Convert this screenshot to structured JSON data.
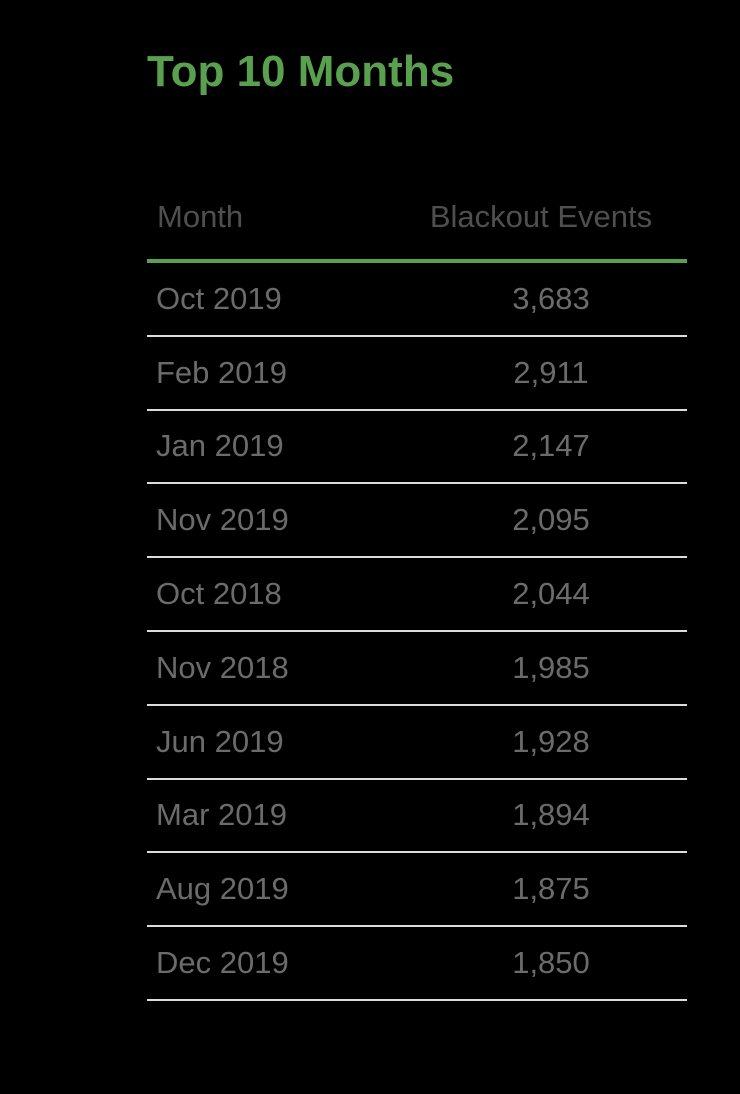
{
  "title": "Top 10 Months",
  "colors": {
    "background": "#000000",
    "accent_green": "#59A14F",
    "header_text": "#4F4F4F",
    "cell_text": "#6B6B6B",
    "row_separator": "#DCDCDC"
  },
  "table": {
    "header": {
      "month": "Month",
      "events": "Blackout Events"
    },
    "rows": [
      {
        "month": "Oct 2019",
        "events": "3,683"
      },
      {
        "month": "Feb 2019",
        "events": "2,911"
      },
      {
        "month": "Jan 2019",
        "events": "2,147"
      },
      {
        "month": "Nov 2019",
        "events": "2,095"
      },
      {
        "month": "Oct 2018",
        "events": "2,044"
      },
      {
        "month": "Nov 2018",
        "events": "1,985"
      },
      {
        "month": "Jun 2019",
        "events": "1,928"
      },
      {
        "month": "Mar 2019",
        "events": "1,894"
      },
      {
        "month": "Aug 2019",
        "events": "1,875"
      },
      {
        "month": "Dec 2019",
        "events": "1,850"
      }
    ]
  },
  "chart_data": {
    "type": "table",
    "title": "Top 10 Months",
    "columns": [
      "Month",
      "Blackout Events"
    ],
    "categories": [
      "Oct 2019",
      "Feb 2019",
      "Jan 2019",
      "Nov 2019",
      "Oct 2018",
      "Nov 2018",
      "Jun 2019",
      "Mar 2019",
      "Aug 2019",
      "Dec 2019"
    ],
    "values": [
      3683,
      2911,
      2147,
      2095,
      2044,
      1985,
      1928,
      1894,
      1875,
      1850
    ]
  }
}
